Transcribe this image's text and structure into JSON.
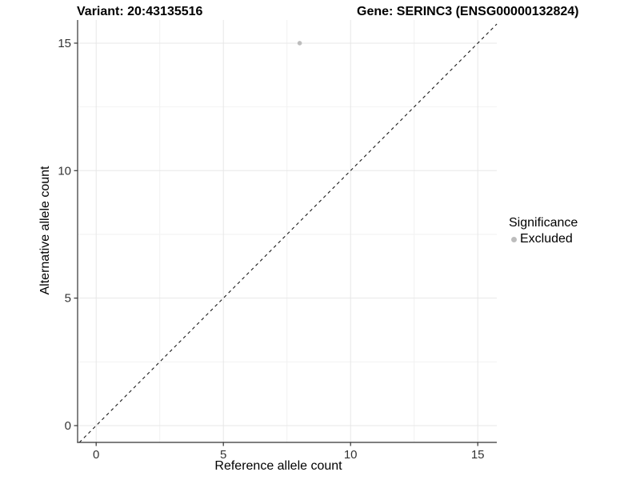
{
  "chart_data": {
    "type": "scatter",
    "title_left": "Variant: 20:43135516",
    "title_right": "Gene: SERINC3 (ENSG00000132824)",
    "xlabel": "Reference allele count",
    "ylabel": "Alternative allele count",
    "x_ticks": [
      0,
      5,
      10,
      15
    ],
    "y_ticks": [
      0,
      5,
      10,
      15
    ],
    "x_minor_ticks": [
      2.5,
      7.5,
      12.5
    ],
    "y_minor_ticks": [
      2.5,
      7.5,
      12.5
    ],
    "xlim": [
      -0.72,
      15.75
    ],
    "ylim": [
      -0.66,
      15.9
    ],
    "grid": true,
    "points": [
      {
        "x": 8,
        "y": 15,
        "significance": "Excluded"
      }
    ],
    "reference_line": {
      "style": "dashed",
      "slope": 1,
      "intercept": 0
    },
    "legend": {
      "title": "Significance",
      "position": "right",
      "items": [
        {
          "label": "Excluded",
          "color": "#bdbdbd"
        }
      ]
    },
    "colors": {
      "point": "#bdbdbd",
      "grid_major": "#e7e7e7",
      "grid_minor": "#f2f2f2",
      "axis": "#333333",
      "tick_label": "#333333",
      "reference_line": "#1a1a1a",
      "background": "#ffffff"
    }
  }
}
